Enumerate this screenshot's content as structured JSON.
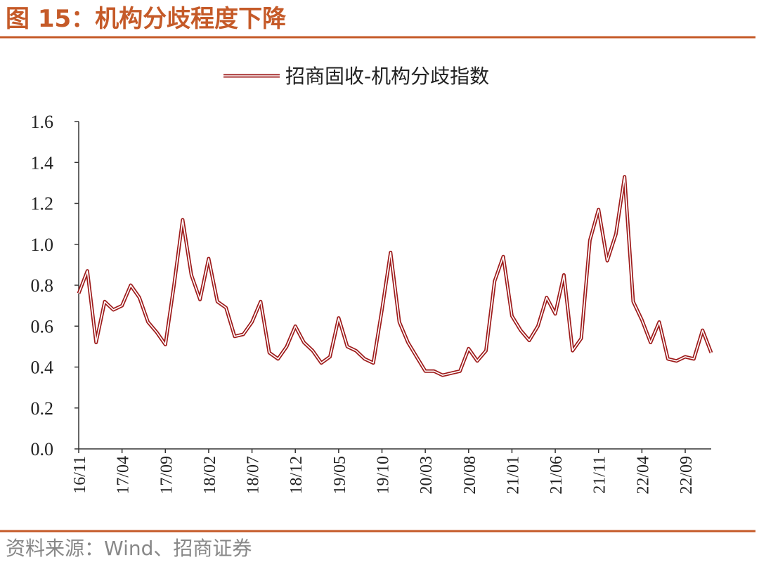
{
  "header": {
    "title": "图 15：机构分歧程度下降"
  },
  "chart_data": {
    "type": "line",
    "legend_position": "top",
    "categories": [
      "16/11",
      null,
      null,
      null,
      null,
      "17/04",
      null,
      null,
      null,
      null,
      "17/09",
      null,
      null,
      null,
      null,
      "18/02",
      null,
      null,
      null,
      null,
      "18/07",
      null,
      null,
      null,
      null,
      "18/12",
      null,
      null,
      null,
      null,
      "19/05",
      null,
      null,
      null,
      null,
      "19/10",
      null,
      null,
      null,
      null,
      "20/03",
      null,
      null,
      null,
      null,
      "20/08",
      null,
      null,
      null,
      null,
      "21/01",
      null,
      null,
      null,
      null,
      "21/06",
      null,
      null,
      null,
      null,
      "21/11",
      null,
      null,
      null,
      null,
      "22/04",
      null,
      null,
      null,
      null,
      "22/09",
      null,
      null,
      null
    ],
    "series": [
      {
        "name": "招商固收-机构分歧指数",
        "color": "#9e1b1b",
        "values": [
          0.76,
          0.87,
          0.52,
          0.72,
          0.68,
          0.7,
          0.8,
          0.74,
          0.62,
          0.57,
          0.51,
          0.8,
          1.12,
          0.85,
          0.73,
          0.93,
          0.72,
          0.69,
          0.55,
          0.56,
          0.62,
          0.72,
          0.47,
          0.44,
          0.5,
          0.6,
          0.52,
          0.48,
          0.42,
          0.45,
          0.64,
          0.5,
          0.48,
          0.44,
          0.42,
          0.68,
          0.96,
          0.62,
          0.52,
          0.45,
          0.38,
          0.38,
          0.36,
          0.37,
          0.38,
          0.49,
          0.43,
          0.48,
          0.82,
          0.94,
          0.65,
          0.58,
          0.53,
          0.6,
          0.74,
          0.66,
          0.85,
          0.48,
          0.54,
          1.02,
          1.17,
          0.92,
          1.05,
          1.33,
          0.72,
          0.63,
          0.52,
          0.62,
          0.44,
          0.43,
          0.45,
          0.44,
          0.58,
          0.47
        ]
      }
    ],
    "ylim": [
      0,
      1.6
    ],
    "yticks": [
      {
        "value": 0,
        "label": "0.0"
      },
      0.2,
      0.4,
      0.6,
      0.8,
      {
        "value": 1,
        "label": "1.0"
      },
      1.2,
      1.4,
      1.6
    ],
    "grid": false
  },
  "footer": {
    "source": "资料来源：Wind、招商证券"
  }
}
